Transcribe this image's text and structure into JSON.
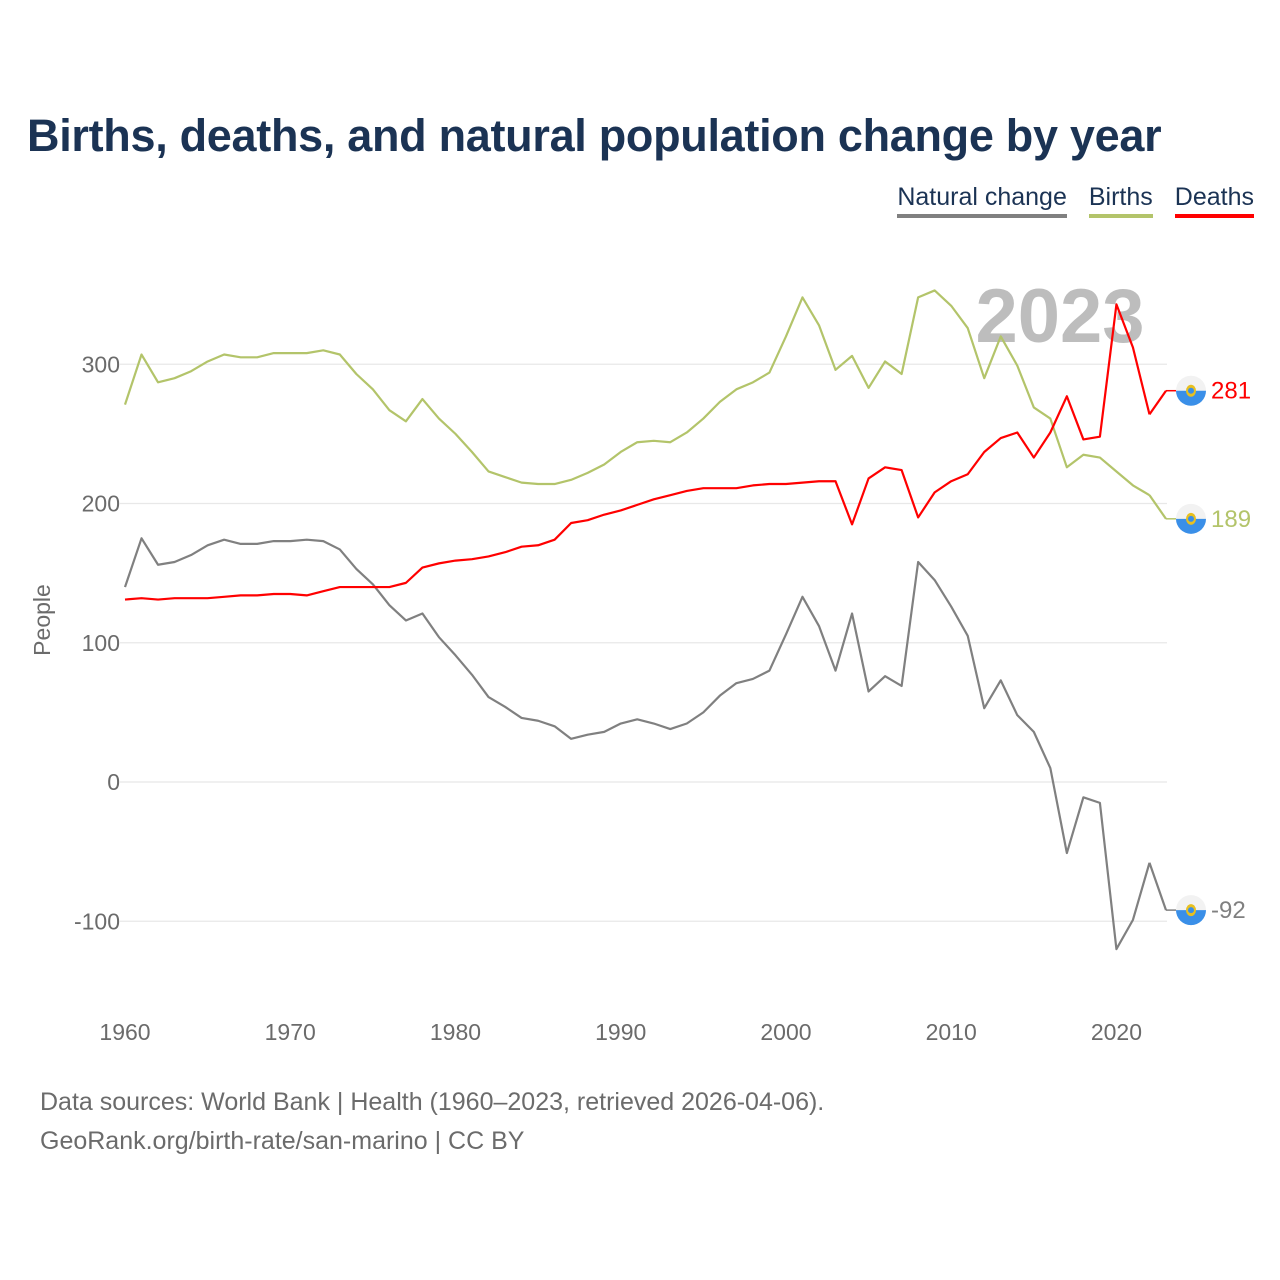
{
  "title": "Births, deaths, and natural population change by year",
  "legend": [
    {
      "label": "Natural change",
      "color": "#808080"
    },
    {
      "label": "Births",
      "color": "#b3c46a"
    },
    {
      "label": "Deaths",
      "color": "#ff0000"
    }
  ],
  "source_line1": "Data sources: World Bank | Health (1960–2023, retrieved 2026-04-06).",
  "source_line2": "GeoRank.org/birth-rate/san-marino | CC BY",
  "chart_data": {
    "type": "line",
    "title": "Births, deaths, and natural population change by year",
    "xlabel": "",
    "ylabel": "People",
    "year_watermark": "2023",
    "xlim": [
      1960,
      2023
    ],
    "ylim": [
      -150,
      360
    ],
    "xticks": [
      "1960",
      "1970",
      "1980",
      "1990",
      "2000",
      "2010",
      "2020"
    ],
    "yticks": [
      "-100",
      "0",
      "100",
      "200",
      "300"
    ],
    "grid": true,
    "legend_position": "top-right",
    "x": [
      1960,
      1961,
      1962,
      1963,
      1964,
      1965,
      1966,
      1967,
      1968,
      1969,
      1970,
      1971,
      1972,
      1973,
      1974,
      1975,
      1976,
      1977,
      1978,
      1979,
      1980,
      1981,
      1982,
      1983,
      1984,
      1985,
      1986,
      1987,
      1988,
      1989,
      1990,
      1991,
      1992,
      1993,
      1994,
      1995,
      1996,
      1997,
      1998,
      1999,
      2000,
      2001,
      2002,
      2003,
      2004,
      2005,
      2006,
      2007,
      2008,
      2009,
      2010,
      2011,
      2012,
      2013,
      2014,
      2015,
      2016,
      2017,
      2018,
      2019,
      2020,
      2021,
      2022,
      2023
    ],
    "series": [
      {
        "name": "Natural change",
        "color": "#808080",
        "end_label": "-92",
        "values": [
          140,
          175,
          156,
          158,
          163,
          170,
          174,
          171,
          171,
          173,
          173,
          174,
          173,
          167,
          153,
          142,
          127,
          116,
          121,
          104,
          91,
          77,
          61,
          54,
          46,
          44,
          40,
          31,
          34,
          36,
          42,
          45,
          42,
          38,
          42,
          50,
          62,
          71,
          74,
          80,
          106,
          133,
          112,
          80,
          121,
          65,
          76,
          69,
          158,
          145,
          126,
          105,
          53,
          73,
          48,
          36,
          10,
          -51,
          -11,
          -15,
          -120,
          -99,
          -58,
          -92
        ]
      },
      {
        "name": "Births",
        "color": "#b3c46a",
        "end_label": "189",
        "values": [
          271,
          307,
          287,
          290,
          295,
          302,
          307,
          305,
          305,
          308,
          308,
          308,
          310,
          307,
          293,
          282,
          267,
          259,
          275,
          261,
          250,
          237,
          223,
          219,
          215,
          214,
          214,
          217,
          222,
          228,
          237,
          244,
          245,
          244,
          251,
          261,
          273,
          282,
          287,
          294,
          320,
          348,
          328,
          296,
          306,
          283,
          302,
          293,
          348,
          353,
          342,
          326,
          290,
          320,
          299,
          269,
          261,
          226,
          235,
          233,
          223,
          213,
          206,
          189
        ]
      },
      {
        "name": "Deaths",
        "color": "#ff0000",
        "end_label": "281",
        "values": [
          131,
          132,
          131,
          132,
          132,
          132,
          133,
          134,
          134,
          135,
          135,
          134,
          137,
          140,
          140,
          140,
          140,
          143,
          154,
          157,
          159,
          160,
          162,
          165,
          169,
          170,
          174,
          186,
          188,
          192,
          195,
          199,
          203,
          206,
          209,
          211,
          211,
          211,
          213,
          214,
          214,
          215,
          216,
          216,
          185,
          218,
          226,
          224,
          190,
          208,
          216,
          221,
          237,
          247,
          251,
          233,
          251,
          277,
          246,
          248,
          343,
          312,
          264,
          281
        ]
      }
    ]
  }
}
